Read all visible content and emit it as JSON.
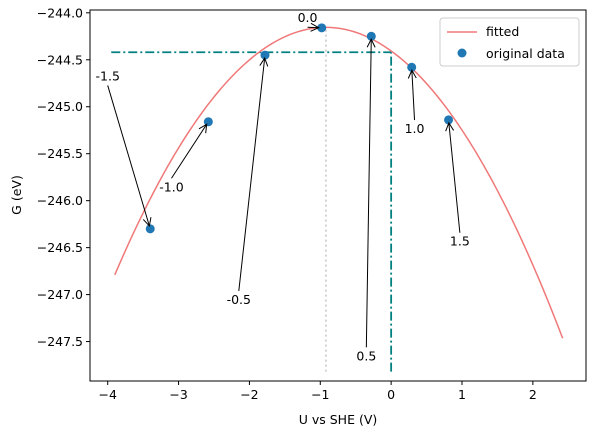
{
  "chart_data": {
    "type": "scatter",
    "xlabel": "U vs SHE (V)",
    "ylabel": "G (eV)",
    "xlim": [
      -4.25,
      2.75
    ],
    "ylim": [
      -247.92,
      -243.97
    ],
    "x_ticks": [
      -4,
      -3,
      -2,
      -1,
      0,
      1,
      2
    ],
    "x_tick_labels": [
      "−4",
      "−3",
      "−2",
      "−1",
      "0",
      "1",
      "2"
    ],
    "y_ticks": [
      -244.0,
      -244.5,
      -245.0,
      -245.5,
      -246.0,
      -246.5,
      -247.0,
      -247.5
    ],
    "y_tick_labels": [
      "−244.0",
      "−244.5",
      "−245.0",
      "−245.5",
      "−246.0",
      "−246.5",
      "−247.0",
      "−247.5"
    ],
    "grid": false,
    "legend_position": "top-right",
    "series": [
      {
        "name": "fitted",
        "kind": "line",
        "color": "#f07878",
        "fit": {
          "vertex_x": -0.92,
          "vertex_y": -244.155,
          "curvature": -0.2967,
          "x_range": [
            -3.9,
            2.42
          ]
        }
      },
      {
        "name": "original data",
        "kind": "scatter",
        "color": "#1f77b4",
        "x": [
          -3.4,
          -2.58,
          -1.78,
          -0.98,
          -0.28,
          0.29,
          0.81
        ],
        "y": [
          -246.3,
          -245.16,
          -244.45,
          -244.16,
          -244.25,
          -244.58,
          -245.14
        ]
      }
    ],
    "annotations": [
      {
        "text": "-1.5",
        "text_x": -4.0,
        "text_y": -244.72,
        "point_x": -3.4,
        "point_y": -246.3
      },
      {
        "text": "-1.0",
        "text_x": -3.1,
        "text_y": -245.9,
        "point_x": -2.58,
        "point_y": -245.16
      },
      {
        "text": "-0.5",
        "text_x": -2.15,
        "text_y": -247.1,
        "point_x": -1.78,
        "point_y": -244.45
      },
      {
        "text": "0.0",
        "text_x": -1.18,
        "text_y": -244.1,
        "point_x": -0.98,
        "point_y": -244.16
      },
      {
        "text": "0.5",
        "text_x": -0.35,
        "text_y": -247.7,
        "point_x": -0.28,
        "point_y": -244.25
      },
      {
        "text": "1.0",
        "text_x": 0.33,
        "text_y": -245.28,
        "point_x": 0.29,
        "point_y": -244.58
      },
      {
        "text": "1.5",
        "text_x": 0.97,
        "text_y": -246.48,
        "point_x": 0.81,
        "point_y": -245.14
      }
    ],
    "reference_lines": [
      {
        "kind": "vertical",
        "x": -0.92,
        "y_range": [
          -247.82,
          -244.16
        ],
        "color": "#bbbbbb",
        "style": "dotted"
      },
      {
        "kind": "horizontal",
        "y": -244.42,
        "x_range": [
          -3.95,
          0.0
        ],
        "color": "#008080",
        "style": "dashdot"
      },
      {
        "kind": "vertical",
        "x": 0.0,
        "y_range": [
          -247.82,
          -244.42
        ],
        "color": "#008080",
        "style": "dashdot"
      }
    ]
  }
}
